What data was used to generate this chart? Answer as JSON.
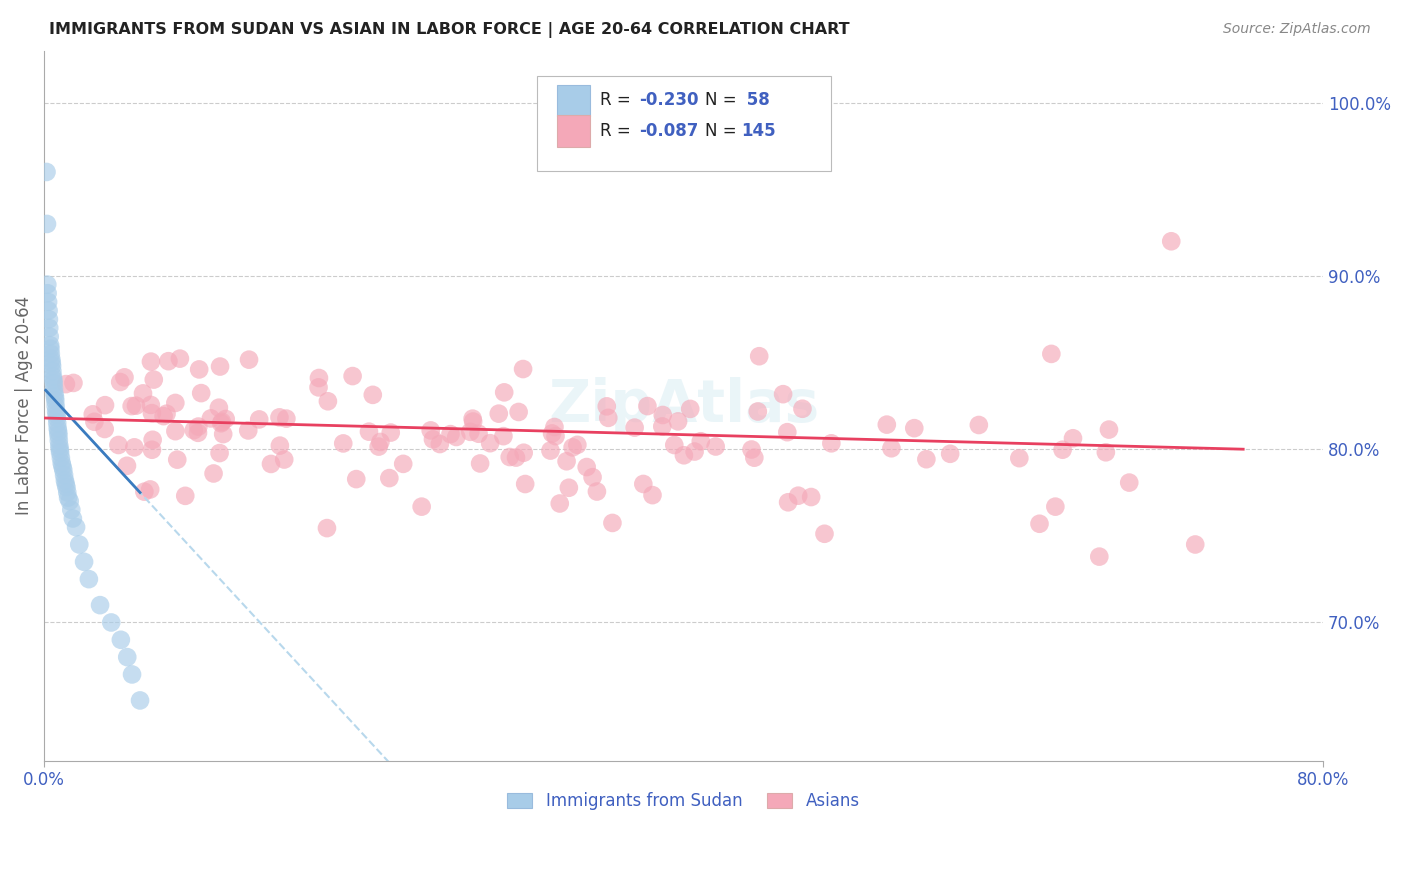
{
  "title": "IMMIGRANTS FROM SUDAN VS ASIAN IN LABOR FORCE | AGE 20-64 CORRELATION CHART",
  "source": "Source: ZipAtlas.com",
  "ylabel": "In Labor Force | Age 20-64",
  "x_tick_left": "0.0%",
  "x_tick_right": "80.0%",
  "y_tick_labels": [
    "100.0%",
    "90.0%",
    "80.0%",
    "70.0%"
  ],
  "y_tick_values": [
    100,
    90,
    80,
    70
  ],
  "xlim": [
    0,
    80
  ],
  "ylim": [
    62,
    103
  ],
  "blue_color": "#a8cce8",
  "pink_color": "#f4a8b8",
  "blue_line_color": "#3a7bbf",
  "pink_line_color": "#e84060",
  "dashed_line_color": "#b8d8ec",
  "text_color": "#4060c0",
  "label_color": "#4060c0",
  "background_color": "#ffffff",
  "grid_color": "#cccccc",
  "watermark_color": "#add8e6",
  "legend_label1": "Immigrants from Sudan",
  "legend_label2": "Asians",
  "r1": "-0.230",
  "n1": "58",
  "r2": "-0.087",
  "n2": "145"
}
